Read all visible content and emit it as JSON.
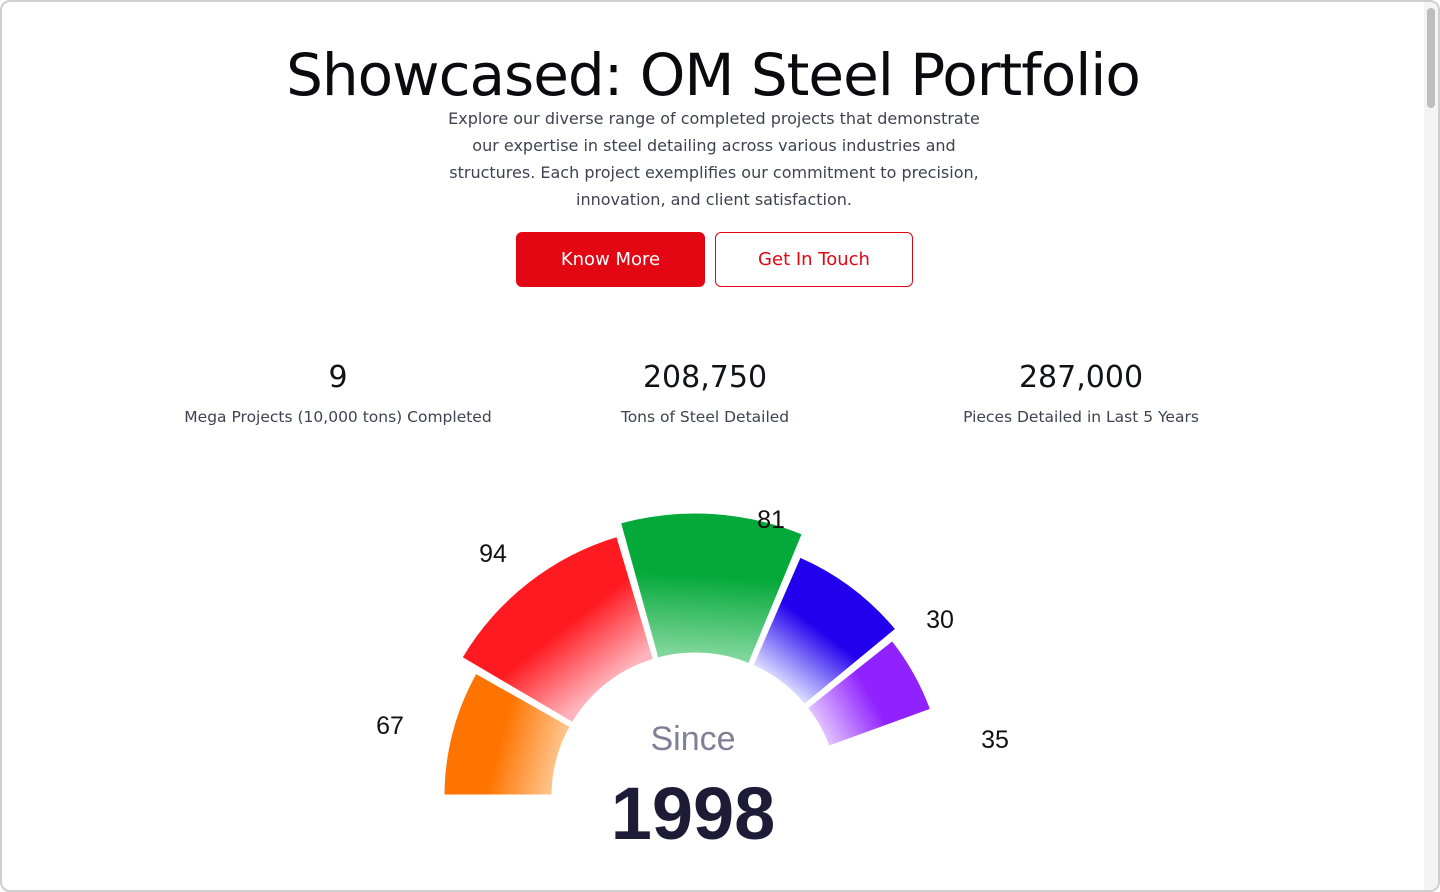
{
  "hero": {
    "title": "Showcased: OM Steel Portfolio",
    "description": "Explore our diverse range of completed projects that demonstrate our expertise in steel detailing across various industries and structures. Each project exemplifies our commitment to precision, innovation, and client satisfaction.",
    "primary_button": "Know More",
    "secondary_button": "Get In Touch"
  },
  "stats": [
    {
      "value": "9",
      "label": "Mega Projects (10,000 tons) Completed"
    },
    {
      "value": "208,750",
      "label": "Tons of Steel Detailed"
    },
    {
      "value": "287,000",
      "label": "Pieces Detailed in Last 5 Years"
    }
  ],
  "gauge": {
    "caption": "Since",
    "year": "1998",
    "segments": [
      {
        "value": 67,
        "color_from": "#ffc38a",
        "color_to": "#ff7400"
      },
      {
        "value": 94,
        "color_from": "#ffb3bb",
        "color_to": "#ff1920"
      },
      {
        "value": 81,
        "color_from": "#7fd69a",
        "color_to": "#04a93a"
      },
      {
        "value": 30,
        "color_from": "#d9d9ff",
        "color_to": "#2200ee"
      },
      {
        "value": 35,
        "color_from": "#e3c4ff",
        "color_to": "#9022ff"
      }
    ]
  },
  "colors": {
    "accent": "#e30613",
    "text_dark": "#0b0b0f",
    "text_muted": "#3f4250",
    "gauge_caption": "#7f8096",
    "gauge_year": "#1d1b36"
  }
}
